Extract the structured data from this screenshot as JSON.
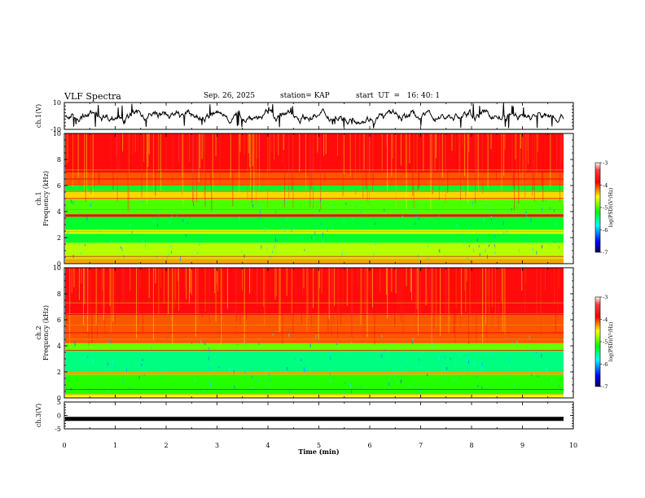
{
  "header": {
    "title": "VLF Spectra",
    "date": "Sep. 26, 2025",
    "station": "station= KAP",
    "start_ut": "start  UT  =   16: 40: 1"
  },
  "chart_data": [
    {
      "type": "line",
      "name": "ch1-waveform",
      "ylabel": "ch.1(V)",
      "ylim": [
        -10,
        10
      ],
      "yticks": [
        10,
        -10
      ],
      "xlim": [
        0,
        10
      ],
      "series": [
        {
          "name": "ch.1",
          "note": "noisy waveform, mostly between -5 and 5 V with spikes to ±10 V, ends at 9.8 min"
        }
      ]
    },
    {
      "type": "heatmap",
      "name": "ch1-spectrogram",
      "ylabel": "ch.1 Frequency (kHz)",
      "ylim": [
        0,
        10
      ],
      "yticks": [
        0,
        2,
        4,
        6,
        8,
        10
      ],
      "xlim": [
        0,
        9.8
      ],
      "colorbar": {
        "label": "log(PSD)(V²/Hz)",
        "range": [
          -7,
          -3
        ],
        "ticks": [
          -3,
          -4,
          -5,
          -6,
          -7
        ]
      },
      "bands_kHz": [
        {
          "from": 0,
          "to": 0.4,
          "level": -4.3
        },
        {
          "from": 0.4,
          "to": 1.6,
          "level": -4.7
        },
        {
          "from": 1.6,
          "to": 2.3,
          "level": -5.3
        },
        {
          "from": 2.3,
          "to": 2.6,
          "level": -4.6
        },
        {
          "from": 2.6,
          "to": 3.6,
          "level": -5.3
        },
        {
          "from": 3.6,
          "to": 3.8,
          "level": -3.9
        },
        {
          "from": 3.8,
          "to": 4.9,
          "level": -5.0
        },
        {
          "from": 4.9,
          "to": 5.5,
          "level": -4.4
        },
        {
          "from": 5.5,
          "to": 6.0,
          "level": -5.3
        },
        {
          "from": 6.0,
          "to": 7.0,
          "level": -4.1
        },
        {
          "from": 7.0,
          "to": 10,
          "level": -3.8
        }
      ]
    },
    {
      "type": "heatmap",
      "name": "ch2-spectrogram",
      "ylabel": "ch.2 Frequency (kHz)",
      "ylim": [
        0,
        10
      ],
      "yticks": [
        0,
        2,
        4,
        6,
        8,
        10
      ],
      "xlim": [
        0,
        9.8
      ],
      "colorbar": {
        "label": "log(PSD)(V²/Hz)",
        "range": [
          -7,
          -3
        ],
        "ticks": [
          -3,
          -4,
          -5,
          -6,
          -7
        ]
      },
      "bands_kHz": [
        {
          "from": 0,
          "to": 0.3,
          "level": -4.5
        },
        {
          "from": 0.3,
          "to": 1.8,
          "level": -5.1
        },
        {
          "from": 1.8,
          "to": 2.0,
          "level": -4.3
        },
        {
          "from": 2.0,
          "to": 3.6,
          "level": -5.5
        },
        {
          "from": 3.6,
          "to": 4.2,
          "level": -4.9
        },
        {
          "from": 4.2,
          "to": 6.5,
          "level": -4.1
        },
        {
          "from": 6.5,
          "to": 10,
          "level": -3.8
        }
      ]
    },
    {
      "type": "line",
      "name": "ch3-waveform",
      "ylabel": "ch.3(V)",
      "ylim": [
        -5,
        5
      ],
      "yticks": [
        5,
        0,
        -5
      ],
      "xlim": [
        0,
        10
      ],
      "series": [
        {
          "name": "ch.3",
          "note": "flat thick line near -1 V"
        }
      ],
      "xlabel": "Time  (min)",
      "xticks": [
        0,
        1,
        2,
        3,
        4,
        5,
        6,
        7,
        8,
        9,
        10
      ]
    }
  ]
}
